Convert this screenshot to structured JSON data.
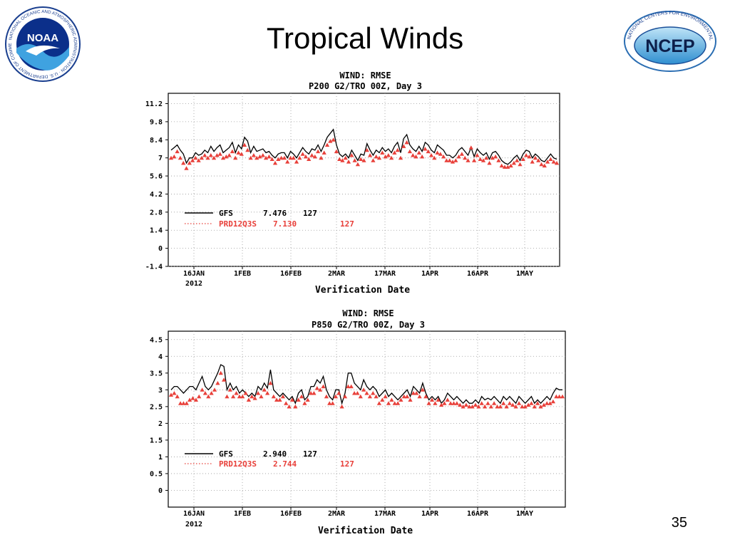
{
  "slide": {
    "title": "Tropical Winds",
    "page_number": "35",
    "logos": {
      "left": {
        "name": "noaa-logo",
        "text": "NOAA",
        "ring_text": "NATIONAL OCEANIC AND ATMOSPHERIC ADMINISTRATION · U.S. DEPARTMENT OF COMMERCE"
      },
      "right": {
        "name": "ncep-logo",
        "text": "NCEP",
        "ring_text": "NATIONAL CENTERS FOR ENVIRONMENTAL PREDICTION"
      }
    }
  },
  "colors": {
    "gfs": "#000000",
    "prd": "#e8403a",
    "grid": "#999999"
  },
  "chart_data": [
    {
      "type": "line",
      "title": "WIND: RMSE",
      "subtitle": "P200 G2/TRO 00Z, Day 3",
      "xlabel": "Verification Date",
      "ylabel": "",
      "x_ticks": [
        "16JAN",
        "1FEB",
        "16FEB",
        "2MAR",
        "17MAR",
        "1APR",
        "16APR",
        "1MAY"
      ],
      "x_year": "2012",
      "y_ticks": [
        "11.2",
        "9.8",
        "8.4",
        "7",
        "5.6",
        "4.2",
        "2.8",
        "1.4",
        "0",
        "-1.4"
      ],
      "ylim": [
        -1.4,
        12.0
      ],
      "grid": "dotted",
      "legend": [
        {
          "label": "GFS",
          "value": "7.476",
          "count": "127"
        },
        {
          "label": "PRD12Q3S",
          "value": "7.130",
          "count": "127"
        }
      ],
      "series": [
        {
          "name": "GFS",
          "style": "solid-line",
          "values": [
            7.6,
            7.8,
            8.0,
            7.6,
            7.3,
            6.6,
            7.0,
            7.0,
            7.4,
            7.2,
            7.3,
            7.6,
            7.4,
            7.9,
            7.5,
            7.8,
            8.0,
            7.4,
            7.6,
            7.8,
            8.2,
            7.4,
            8.0,
            7.7,
            8.6,
            8.3,
            7.4,
            7.9,
            7.5,
            7.6,
            7.7,
            7.4,
            7.5,
            7.2,
            7.0,
            7.3,
            7.4,
            7.4,
            7.0,
            7.5,
            7.3,
            7.0,
            7.4,
            7.8,
            7.5,
            7.3,
            7.7,
            7.6,
            8.0,
            7.5,
            8.0,
            8.6,
            8.9,
            9.2,
            8.0,
            7.3,
            7.1,
            7.3,
            7.0,
            7.6,
            7.2,
            6.8,
            7.3,
            7.2,
            8.1,
            7.6,
            7.2,
            7.6,
            7.4,
            7.8,
            7.5,
            7.7,
            7.4,
            7.9,
            8.2,
            7.4,
            8.5,
            8.8,
            8.0,
            7.7,
            7.5,
            7.9,
            7.5,
            8.2,
            8.0,
            7.6,
            7.4,
            8.0,
            7.8,
            7.6,
            7.2,
            7.2,
            7.0,
            7.2,
            7.6,
            7.8,
            7.5,
            7.2,
            7.8,
            7.1,
            7.7,
            7.4,
            7.2,
            7.4,
            6.9,
            7.4,
            7.5,
            7.2,
            6.8,
            6.6,
            6.5,
            6.7,
            7.0,
            7.2,
            6.8,
            7.3,
            7.6,
            7.5,
            7.0,
            7.3,
            7.1,
            6.8,
            6.7,
            7.0,
            7.3,
            7.0,
            6.9
          ]
        },
        {
          "name": "PRD12Q3S",
          "style": "triangles",
          "values": [
            7.0,
            7.1,
            7.5,
            7.0,
            6.6,
            6.2,
            6.6,
            6.8,
            7.0,
            6.8,
            7.0,
            7.2,
            7.0,
            7.2,
            7.0,
            7.2,
            7.3,
            7.0,
            7.1,
            7.2,
            7.5,
            7.0,
            7.4,
            7.3,
            8.0,
            7.6,
            7.0,
            7.2,
            7.0,
            7.1,
            7.2,
            7.0,
            7.1,
            6.9,
            6.6,
            6.9,
            7.0,
            7.0,
            6.7,
            7.0,
            7.0,
            6.7,
            7.0,
            7.3,
            7.1,
            6.9,
            7.2,
            7.1,
            7.5,
            7.0,
            7.4,
            8.0,
            8.3,
            8.4,
            7.5,
            6.9,
            6.8,
            7.0,
            6.7,
            7.2,
            6.8,
            6.5,
            6.9,
            6.8,
            7.6,
            7.2,
            6.8,
            7.1,
            7.0,
            7.4,
            7.1,
            7.2,
            7.0,
            7.4,
            7.6,
            7.0,
            7.9,
            8.2,
            7.5,
            7.2,
            7.1,
            7.4,
            7.1,
            7.7,
            7.5,
            7.2,
            7.0,
            7.4,
            7.3,
            7.1,
            6.8,
            6.8,
            6.7,
            6.8,
            7.1,
            7.3,
            7.0,
            6.8,
            7.8,
            6.8,
            7.2,
            6.9,
            6.8,
            7.0,
            6.6,
            7.0,
            7.1,
            6.8,
            6.4,
            6.3,
            6.3,
            6.4,
            6.6,
            6.8,
            6.5,
            6.9,
            7.2,
            7.1,
            6.7,
            7.0,
            6.8,
            6.5,
            6.4,
            6.7,
            6.9,
            6.7,
            6.6
          ]
        }
      ]
    },
    {
      "type": "line",
      "title": "WIND: RMSE",
      "subtitle": "P850 G2/TRO 00Z, Day 3",
      "xlabel": "Verification Date",
      "ylabel": "",
      "x_ticks": [
        "16JAN",
        "1FEB",
        "16FEB",
        "2MAR",
        "17MAR",
        "1APR",
        "16APR",
        "1MAY"
      ],
      "x_year": "2012",
      "y_ticks": [
        "4.5",
        "4",
        "3.5",
        "3",
        "2.5",
        "2",
        "1.5",
        "1",
        "0.5",
        "0"
      ],
      "ylim": [
        -0.5,
        4.75
      ],
      "grid": "dotted",
      "legend": [
        {
          "label": "GFS",
          "value": "2.940",
          "count": "127"
        },
        {
          "label": "PRD12Q3S",
          "value": "2.744",
          "count": "127"
        }
      ],
      "series": [
        {
          "name": "GFS",
          "style": "solid-line",
          "values": [
            3.0,
            3.1,
            3.1,
            3.0,
            2.9,
            3.0,
            3.1,
            3.1,
            3.0,
            3.2,
            3.4,
            3.1,
            3.0,
            3.1,
            3.3,
            3.5,
            3.75,
            3.7,
            3.0,
            3.2,
            3.0,
            3.1,
            2.9,
            3.0,
            2.9,
            2.8,
            2.9,
            2.8,
            3.1,
            3.0,
            3.2,
            3.05,
            3.6,
            3.0,
            2.9,
            2.8,
            2.9,
            2.8,
            2.7,
            2.8,
            2.6,
            2.9,
            3.0,
            2.7,
            2.8,
            3.1,
            3.1,
            3.3,
            3.2,
            3.4,
            3.0,
            2.8,
            2.7,
            3.0,
            3.0,
            2.6,
            2.9,
            3.5,
            3.5,
            3.2,
            3.1,
            3.0,
            3.3,
            3.1,
            3.0,
            3.1,
            3.0,
            2.8,
            2.9,
            3.0,
            2.8,
            2.9,
            2.8,
            2.7,
            2.8,
            2.9,
            3.0,
            2.8,
            3.1,
            3.0,
            2.9,
            3.2,
            2.9,
            2.7,
            2.8,
            2.7,
            2.8,
            2.6,
            2.7,
            2.9,
            2.8,
            2.7,
            2.8,
            2.7,
            2.6,
            2.7,
            2.6,
            2.6,
            2.7,
            2.6,
            2.8,
            2.7,
            2.75,
            2.7,
            2.8,
            2.7,
            2.6,
            2.8,
            2.7,
            2.8,
            2.7,
            2.6,
            2.8,
            2.7,
            2.6,
            2.7,
            2.8,
            2.6,
            2.7,
            2.6,
            2.7,
            2.8,
            2.7,
            2.9,
            3.05,
            3.0,
            3.0
          ]
        },
        {
          "name": "PRD12Q3S",
          "style": "triangles",
          "values": [
            2.85,
            2.9,
            2.8,
            2.6,
            2.6,
            2.6,
            2.7,
            2.75,
            2.7,
            2.8,
            3.0,
            2.9,
            2.8,
            2.9,
            3.0,
            3.2,
            3.5,
            3.3,
            2.8,
            3.0,
            2.8,
            2.9,
            2.8,
            2.8,
            2.9,
            2.7,
            2.8,
            2.75,
            2.9,
            2.8,
            3.0,
            2.9,
            3.2,
            2.8,
            2.7,
            2.7,
            2.8,
            2.6,
            2.5,
            2.7,
            2.5,
            2.7,
            2.8,
            2.6,
            2.7,
            2.9,
            2.9,
            3.05,
            3.0,
            3.1,
            2.8,
            2.6,
            2.6,
            2.8,
            2.9,
            2.5,
            2.8,
            3.1,
            3.1,
            2.9,
            2.9,
            2.8,
            3.0,
            2.9,
            2.8,
            2.9,
            2.8,
            2.6,
            2.7,
            2.8,
            2.6,
            2.7,
            2.6,
            2.6,
            2.7,
            2.8,
            2.8,
            2.7,
            2.9,
            2.9,
            2.8,
            3.0,
            2.8,
            2.6,
            2.7,
            2.6,
            2.7,
            2.55,
            2.6,
            2.7,
            2.6,
            2.6,
            2.6,
            2.55,
            2.5,
            2.55,
            2.5,
            2.5,
            2.55,
            2.5,
            2.6,
            2.5,
            2.6,
            2.5,
            2.6,
            2.5,
            2.5,
            2.6,
            2.5,
            2.6,
            2.55,
            2.5,
            2.6,
            2.5,
            2.5,
            2.55,
            2.6,
            2.5,
            2.6,
            2.5,
            2.55,
            2.6,
            2.6,
            2.65,
            2.8,
            2.8,
            2.8
          ]
        }
      ]
    }
  ]
}
